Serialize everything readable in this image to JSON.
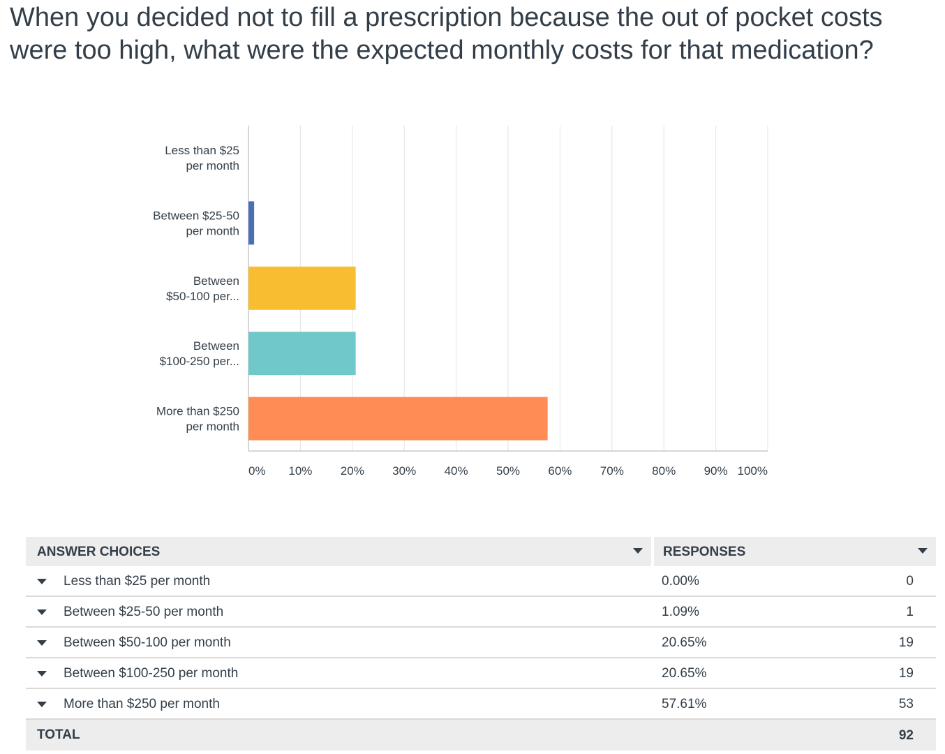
{
  "question": {
    "title": "When you decided not to fill a prescription because the out of pocket costs were too high, what were the expected monthly costs for that medication?"
  },
  "colors": {
    "text": "#333e48",
    "grid": "#e3e3e3",
    "axis": "#c8c8c8",
    "header_bg": "#ededed",
    "series": [
      "#4a6fb5",
      "#4a6fb5",
      "#f8bd30",
      "#70c8ca",
      "#ff8c55"
    ]
  },
  "chart_data": {
    "type": "bar",
    "orientation": "horizontal",
    "categories": [
      [
        "Less than $25",
        "per month"
      ],
      [
        "Between $25-50",
        "per month"
      ],
      [
        "Between",
        "$50-100 per..."
      ],
      [
        "Between",
        "$100-250 per..."
      ],
      [
        "More than $250",
        "per month"
      ]
    ],
    "values": [
      0.0,
      1.09,
      20.65,
      20.65,
      57.61
    ],
    "xlim": [
      0,
      100
    ],
    "ticks": [
      0,
      10,
      20,
      30,
      40,
      50,
      60,
      70,
      80,
      90,
      100
    ],
    "tick_labels": [
      "0%",
      "10%",
      "20%",
      "30%",
      "40%",
      "50%",
      "60%",
      "70%",
      "80%",
      "90%",
      "100%"
    ],
    "grid": true,
    "title": "",
    "xlabel": "",
    "ylabel": ""
  },
  "table": {
    "headers": {
      "answer": "ANSWER CHOICES",
      "responses": "RESPONSES"
    },
    "rows": [
      {
        "answer": "Less than $25 per month",
        "percent": "0.00%",
        "count": "0"
      },
      {
        "answer": "Between $25-50 per month",
        "percent": "1.09%",
        "count": "1"
      },
      {
        "answer": "Between $50-100 per month",
        "percent": "20.65%",
        "count": "19"
      },
      {
        "answer": "Between $100-250 per month",
        "percent": "20.65%",
        "count": "19"
      },
      {
        "answer": "More than $250 per month",
        "percent": "57.61%",
        "count": "53"
      }
    ],
    "total": {
      "label": "TOTAL",
      "count": "92"
    }
  }
}
